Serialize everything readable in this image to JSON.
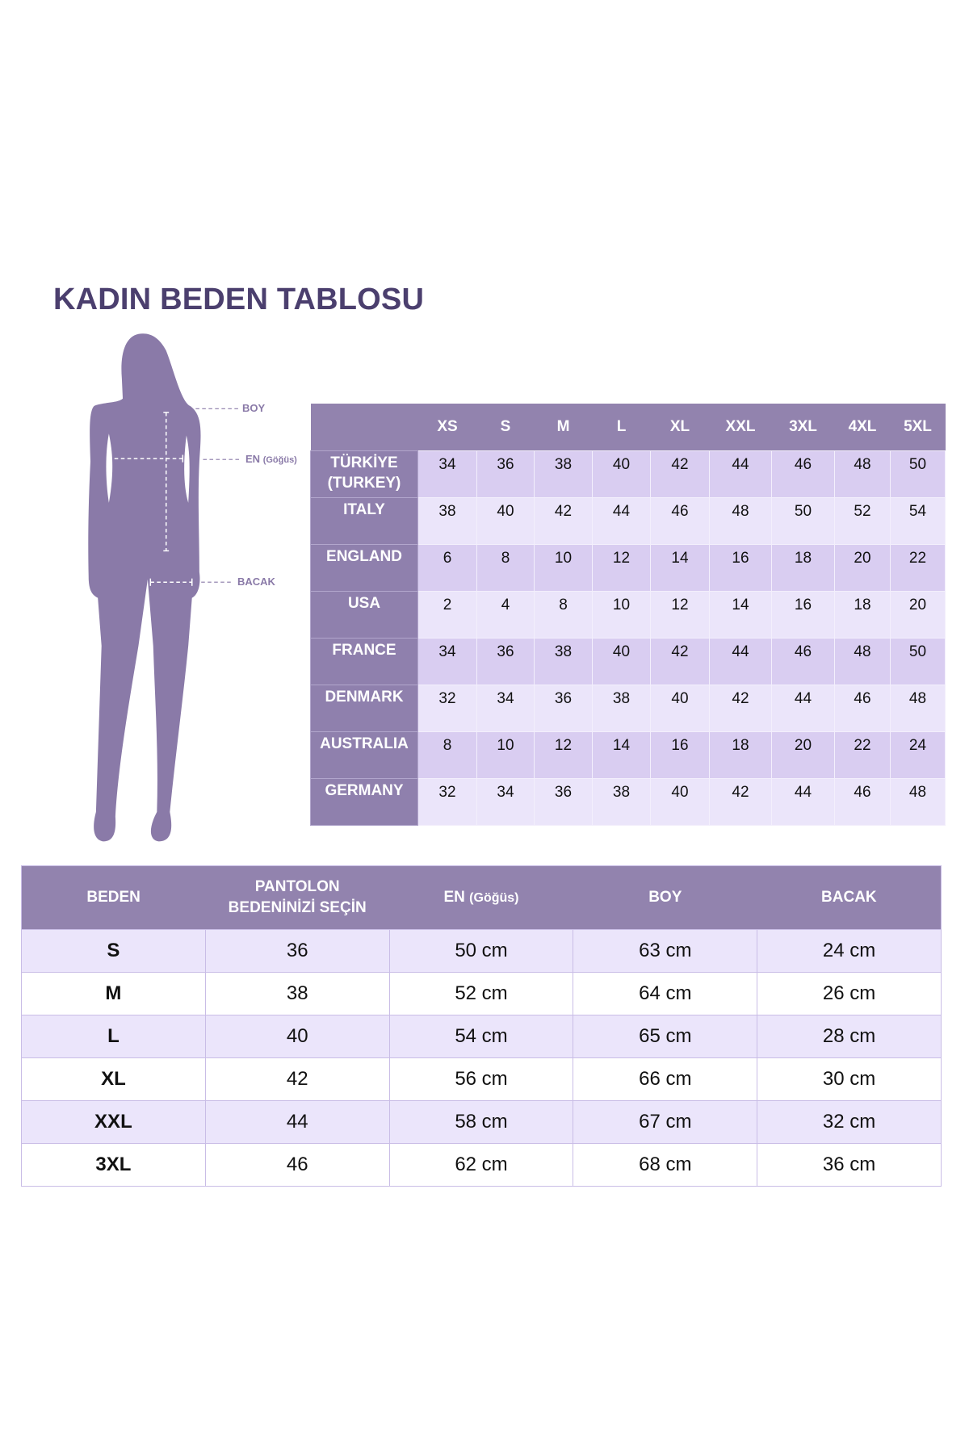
{
  "title": "KADIN BEDEN TABLOSU",
  "colors": {
    "title": "#4b3f6e",
    "header": "#9283ae",
    "row_dark": "#d9cdf1",
    "row_light": "#ebe5fa",
    "silhouette": "#8a7aa8"
  },
  "figure": {
    "labels": {
      "boy": "BOY",
      "en": "EN",
      "en_note": "(Göğüs)",
      "bacak": "BACAK"
    }
  },
  "size_table": {
    "columns": [
      "XS",
      "S",
      "M",
      "L",
      "XL",
      "XXL",
      "3XL",
      "4XL",
      "5XL"
    ],
    "rows": [
      {
        "country": "TÜRKİYE (TURKEY)",
        "values": [
          "34",
          "36",
          "38",
          "40",
          "42",
          "44",
          "46",
          "48",
          "50"
        ]
      },
      {
        "country": "ITALY",
        "values": [
          "38",
          "40",
          "42",
          "44",
          "46",
          "48",
          "50",
          "52",
          "54"
        ]
      },
      {
        "country": "ENGLAND",
        "values": [
          "6",
          "8",
          "10",
          "12",
          "14",
          "16",
          "18",
          "20",
          "22"
        ]
      },
      {
        "country": "USA",
        "values": [
          "2",
          "4",
          "8",
          "10",
          "12",
          "14",
          "16",
          "18",
          "20"
        ]
      },
      {
        "country": "FRANCE",
        "values": [
          "34",
          "36",
          "38",
          "40",
          "42",
          "44",
          "46",
          "48",
          "50"
        ]
      },
      {
        "country": "DENMARK",
        "values": [
          "32",
          "34",
          "36",
          "38",
          "40",
          "42",
          "44",
          "46",
          "48"
        ]
      },
      {
        "country": "AUSTRALIA",
        "values": [
          "8",
          "10",
          "12",
          "14",
          "16",
          "18",
          "20",
          "22",
          "24"
        ]
      },
      {
        "country": "GERMANY",
        "values": [
          "32",
          "34",
          "36",
          "38",
          "40",
          "42",
          "44",
          "46",
          "48"
        ]
      }
    ]
  },
  "measure_table": {
    "headers": {
      "beden": "BEDEN",
      "pantolon_1": "PANTOLON",
      "pantolon_2": "BEDENİNİZİ SEÇİN",
      "en": "EN",
      "en_note": "(Göğüs)",
      "boy": "BOY",
      "bacak": "BACAK"
    },
    "rows": [
      [
        "S",
        "36",
        "50 cm",
        "63 cm",
        "24 cm"
      ],
      [
        "M",
        "38",
        "52 cm",
        "64 cm",
        "26 cm"
      ],
      [
        "L",
        "40",
        "54 cm",
        "65 cm",
        "28 cm"
      ],
      [
        "XL",
        "42",
        "56 cm",
        "66 cm",
        "30 cm"
      ],
      [
        "XXL",
        "44",
        "58 cm",
        "67 cm",
        "32 cm"
      ],
      [
        "3XL",
        "46",
        "62 cm",
        "68 cm",
        "36 cm"
      ]
    ]
  }
}
